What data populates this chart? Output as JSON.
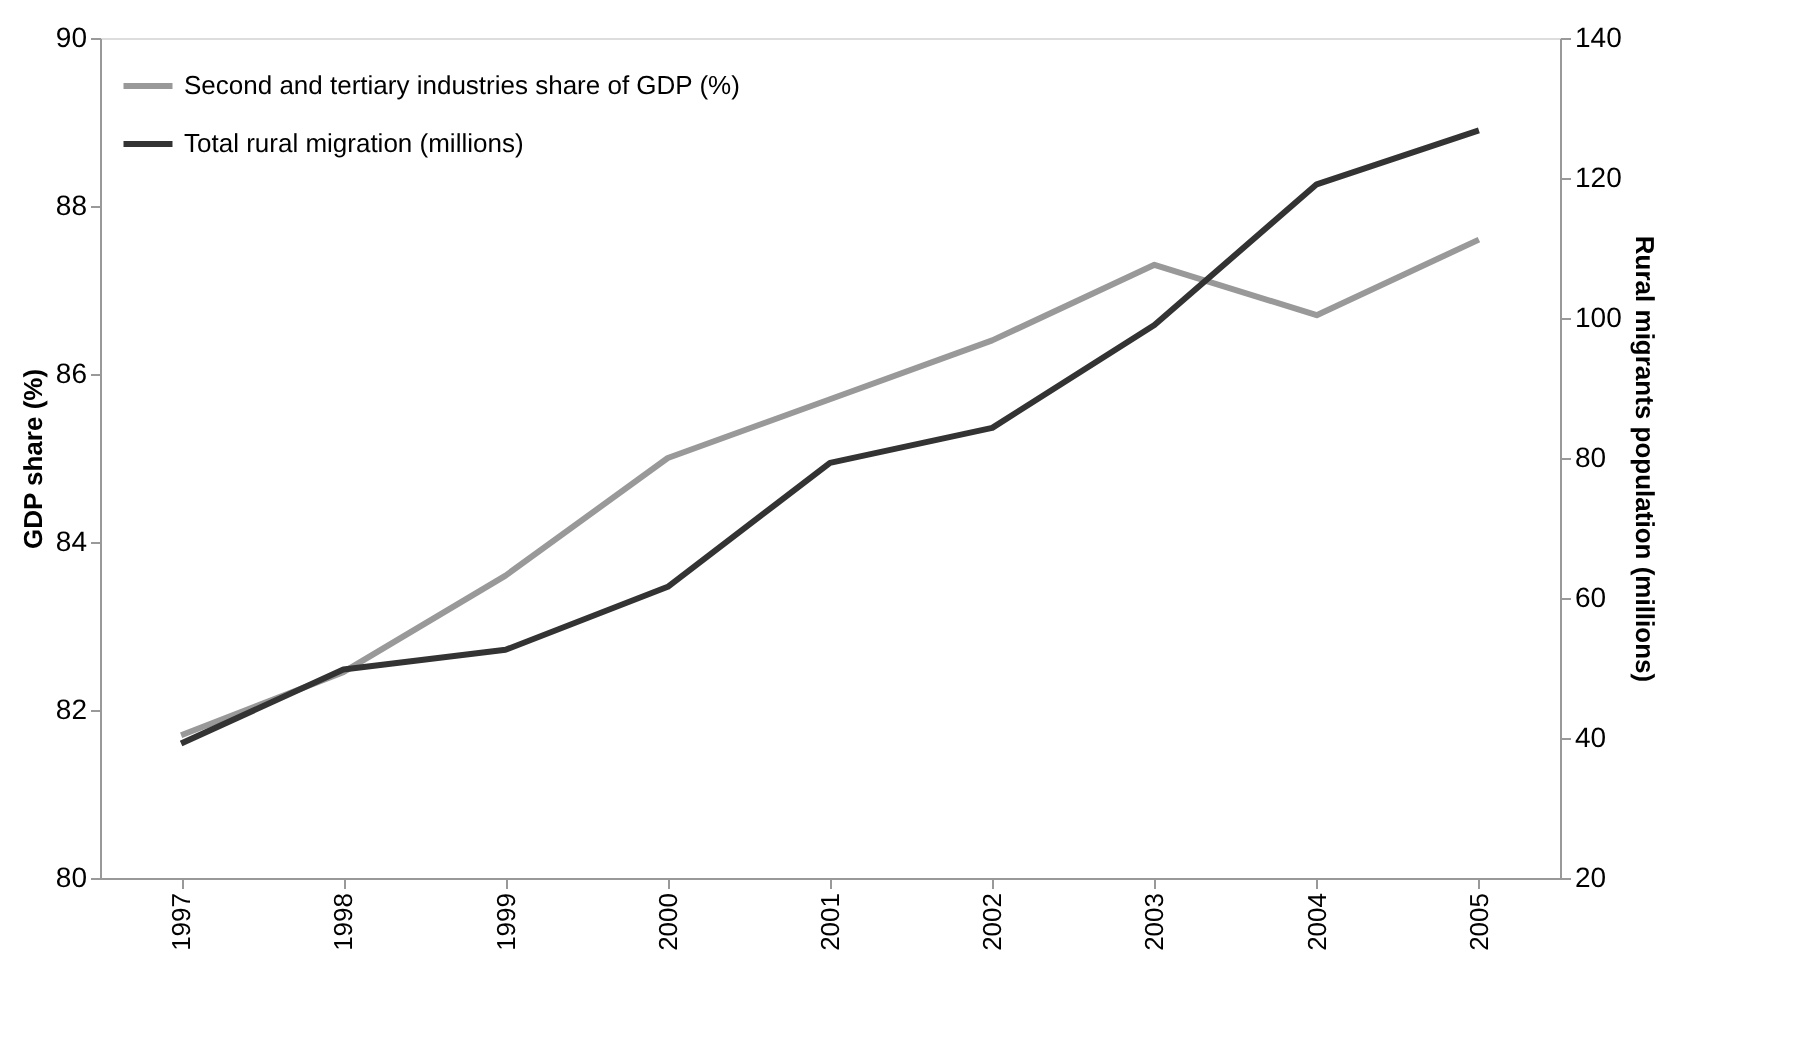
{
  "chart_data": {
    "type": "line",
    "categories": [
      "1997",
      "1998",
      "1999",
      "2000",
      "2001",
      "2002",
      "2003",
      "2004",
      "2005"
    ],
    "ylabel": "GDP share (%)",
    "y2label": "Rural migrants population (millions)",
    "ylim": [
      80,
      90
    ],
    "yticks": [
      80,
      82,
      84,
      86,
      88,
      90
    ],
    "y2lim": [
      20,
      140
    ],
    "y2ticks": [
      20,
      40,
      60,
      80,
      100,
      120,
      140
    ],
    "grid": false,
    "legend": "top left",
    "marker": "none",
    "line_style": "solid",
    "series": [
      {
        "name": "Second and tertiary industries share of GDP (%)",
        "color": "#999999",
        "values": [
          81.7,
          82.45,
          83.6,
          85.0,
          85.7,
          86.4,
          87.3,
          86.7,
          87.6
        ]
      },
      {
        "name": "Total rural migration (millions)",
        "color": "#333333",
        "axis": "y2",
        "values": [
          39.2,
          49.8,
          52.6,
          61.6,
          79.3,
          84.3,
          99.0,
          119.1,
          126.8
        ]
      }
    ]
  }
}
